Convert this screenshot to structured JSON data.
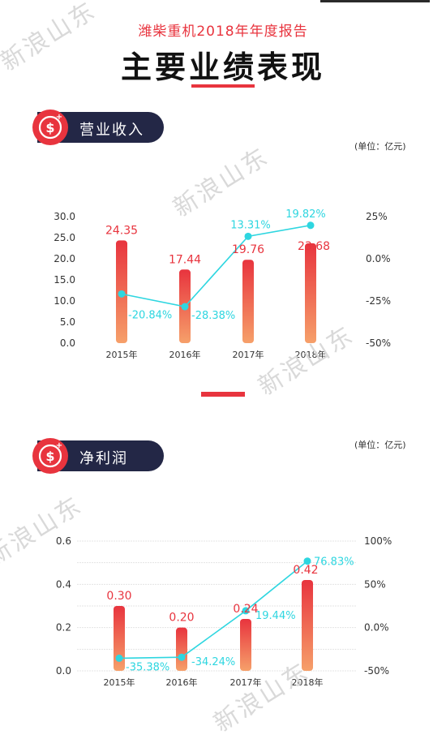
{
  "header": {
    "subtitle": "潍柴重机2018年年度报告",
    "title": "主要业绩表现"
  },
  "sections": [
    {
      "label": "营业收入",
      "unit": "(单位：亿元)"
    },
    {
      "label": "净利润",
      "unit": "(单位：亿元)"
    }
  ],
  "watermark_text": "新浪山东",
  "colors": {
    "accent_red": "#e8343e",
    "line_cyan": "#2ed6e0",
    "pill_navy": "#232746",
    "bar_top": "#e8343e",
    "bar_bottom": "#f6a06a"
  },
  "icons": {
    "badge": "dollar-coin-icon"
  },
  "chart_data": [
    {
      "type": "bar",
      "categories": [
        "2015年",
        "2016年",
        "2017年",
        "2018年"
      ],
      "series": [
        {
          "values": [
            24.35,
            17.44,
            19.76,
            23.68
          ],
          "labels": [
            "24.35",
            "17.44",
            "19.76",
            "23.68"
          ]
        }
      ],
      "line_series": {
        "values": [
          -20.84,
          -28.38,
          13.31,
          19.82
        ],
        "labels": [
          "-20.84%",
          "-28.38%",
          "13.31%",
          "19.82%"
        ]
      },
      "ylim": [
        0,
        30
      ],
      "yticks": [
        "0.0",
        "5.0",
        "10.0",
        "15.0",
        "20.0",
        "25.0",
        "30.0"
      ],
      "ytick_values": [
        0,
        5,
        10,
        15,
        20,
        25,
        30
      ],
      "y2lim": [
        -50,
        25
      ],
      "y2ticks": [
        "-50%",
        "-25%",
        "0.0%",
        "25%"
      ],
      "y2tick_values": [
        -50,
        -25,
        0,
        25
      ],
      "grid": false
    },
    {
      "type": "bar",
      "categories": [
        "2015年",
        "2016年",
        "2017年",
        "2018年"
      ],
      "series": [
        {
          "values": [
            0.3,
            0.2,
            0.24,
            0.42
          ],
          "labels": [
            "0.30",
            "0.20",
            "0.24",
            "0.42"
          ]
        }
      ],
      "line_series": {
        "values": [
          -35.38,
          -34.24,
          19.44,
          76.83
        ],
        "labels": [
          "-35.38%",
          "-34.24%",
          "19.44%",
          "76.83%"
        ]
      },
      "ylim": [
        0,
        0.6
      ],
      "yticks": [
        "0.0",
        "0.2",
        "0.4",
        "0.6"
      ],
      "ytick_values": [
        0,
        0.2,
        0.4,
        0.6
      ],
      "y2lim": [
        -50,
        100
      ],
      "y2ticks": [
        "-50%",
        "0.0%",
        "50%",
        "100%"
      ],
      "y2tick_values": [
        -50,
        0,
        50,
        100
      ],
      "grid": true
    }
  ]
}
